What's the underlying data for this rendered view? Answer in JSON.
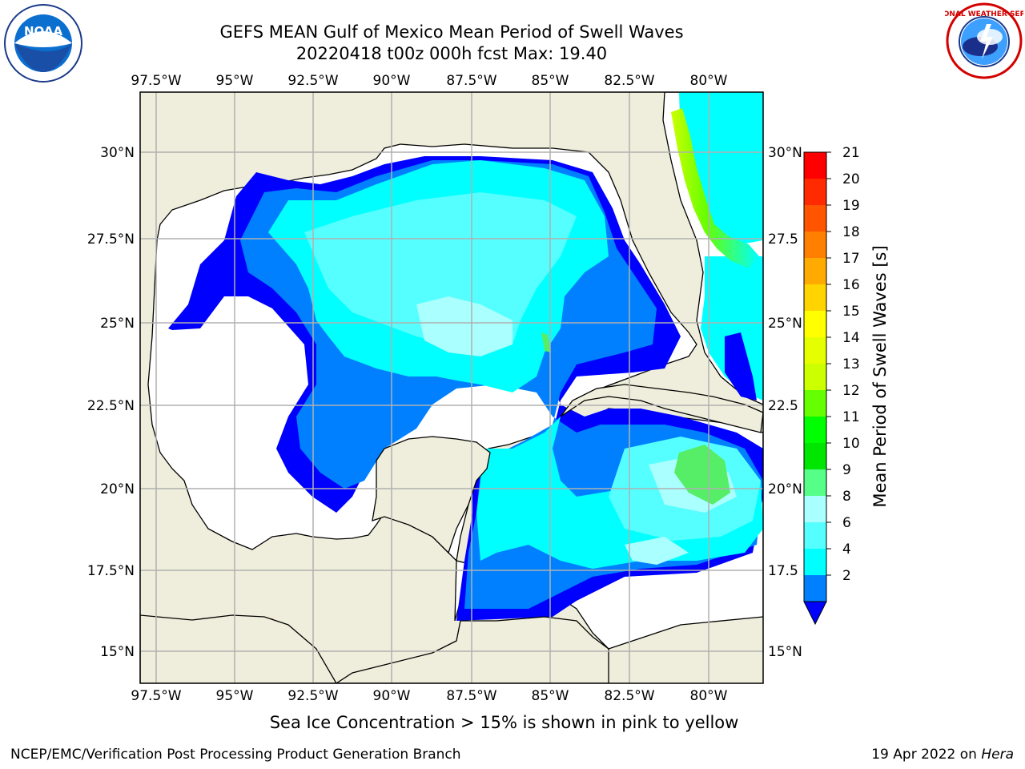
{
  "header": {
    "title_line1": "GEFS MEAN Gulf of Mexico Mean Period of Swell Waves",
    "title_line2": "20220418 t00z 000h fcst   Max: 19.40"
  },
  "logos": {
    "left": {
      "icon": "noaa-logo-icon",
      "text": "NOAA"
    },
    "right": {
      "icon": "nws-logo-icon",
      "text": "NATIONAL WEATHER SERVICE"
    }
  },
  "map": {
    "lon_labels": [
      "97.5°W",
      "95°W",
      "92.5°W",
      "90°W",
      "87.5°W",
      "85°W",
      "82.5°W",
      "80°W"
    ],
    "lat_labels_left": [
      "30°N",
      "27.5°N",
      "25°N",
      "22.5°N",
      "20°N",
      "17.5°N",
      "15°N"
    ],
    "lat_labels_right": [
      "30°N",
      "27.5",
      "25°N",
      "22.5",
      "20°N",
      "17.5",
      "15°N"
    ],
    "land_color": "#efeedc",
    "grid_color": "#b0b0b0"
  },
  "colorbar": {
    "label": "Mean Period of Swell Waves [s]",
    "ticks": [
      "21",
      "20",
      "19",
      "18",
      "17",
      "16",
      "15",
      "14",
      "13",
      "12",
      "11",
      "10",
      "9",
      "8",
      "6",
      "4",
      "2"
    ],
    "colors_top_to_bottom": [
      "#ff0000",
      "#ff2a00",
      "#ff5500",
      "#ff7f00",
      "#ffaa00",
      "#ffd400",
      "#ffff00",
      "#e6ff00",
      "#ccff00",
      "#66ff00",
      "#00ff00",
      "#00e600",
      "#55ff88",
      "#aaffff",
      "#55ffff",
      "#00ffff",
      "#0080ff"
    ],
    "extend_color": "#0000ff"
  },
  "caption": "Sea Ice Concentration > 15% is shown in pink to yellow",
  "footer": {
    "left": "NCEP/EMC/Verification Post Processing Product Generation Branch",
    "right_date": "19 Apr 2022 on ",
    "right_host": "Hera"
  }
}
